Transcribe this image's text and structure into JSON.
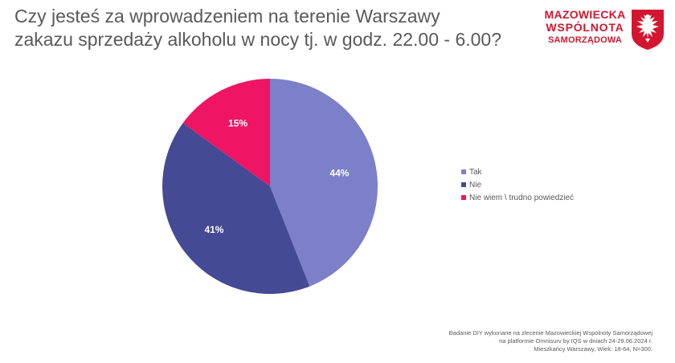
{
  "title": {
    "line1": "Czy jesteś za wprowadzeniem na terenie Warszawy",
    "line2": "zakazu sprzedaży alkoholu w nocy tj. w godz. 22.00 - 6.00?"
  },
  "logo": {
    "line1": "MAZOWIECKA",
    "line2": "WSPÓLNOTA",
    "line3": "SAMORZĄDOWA",
    "icon": "eagle-shield-icon",
    "color": "#d3162f"
  },
  "chart_data": {
    "type": "pie",
    "title": "",
    "start_angle_deg": 0,
    "direction": "clockwise",
    "slices": [
      {
        "label": "Tak",
        "value": 44,
        "display": "44%",
        "color": "#7b80c9"
      },
      {
        "label": "Nie",
        "value": 41,
        "display": "41%",
        "color": "#444a94"
      },
      {
        "label": "Nie wiem \\ trudno powiedzieć",
        "value": 15,
        "display": "15%",
        "color": "#ee1565"
      }
    ],
    "legend_position": "right"
  },
  "footnote": {
    "line1": "Badanie DIY wykonane na zlecenie Mazowieckiej Wspólnoty Samorządowej",
    "line2": "na platformie Omnisurv by IQS w dniach 24-29.06.2024   r.",
    "line3": "Mieszkańcy Warszawy, Wiek: 18-64, N=300."
  }
}
